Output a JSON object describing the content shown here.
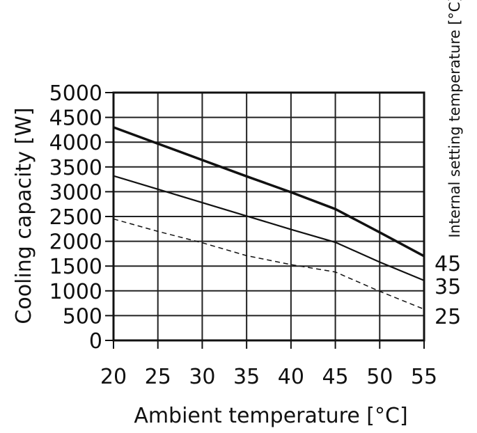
{
  "chart_data": {
    "type": "line",
    "title": "",
    "xlabel": "Ambient temperature [°C]",
    "ylabel": "Cooling capacity [W]",
    "legend_title": "Internal setting temperature [°C]",
    "legend_position": "right",
    "xlim": [
      20,
      55
    ],
    "ylim": [
      0,
      5000
    ],
    "grid": true,
    "x_ticks": [
      20,
      25,
      30,
      35,
      40,
      45,
      50,
      55
    ],
    "y_ticks": [
      0,
      500,
      1000,
      1500,
      2000,
      2500,
      3000,
      3500,
      4000,
      4500,
      5000
    ],
    "x": [
      20,
      25,
      30,
      35,
      40,
      45,
      50,
      55
    ],
    "series": [
      {
        "name": "45",
        "style": "thick",
        "values": [
          4300,
          3970,
          3640,
          3310,
          2990,
          2650,
          2180,
          1700
        ]
      },
      {
        "name": "35",
        "style": "solid",
        "values": [
          3320,
          3050,
          2780,
          2510,
          2240,
          1980,
          1580,
          1210
        ]
      },
      {
        "name": "25",
        "style": "dashed",
        "values": [
          2450,
          2200,
          1970,
          1710,
          1530,
          1380,
          990,
          630
        ]
      }
    ]
  }
}
